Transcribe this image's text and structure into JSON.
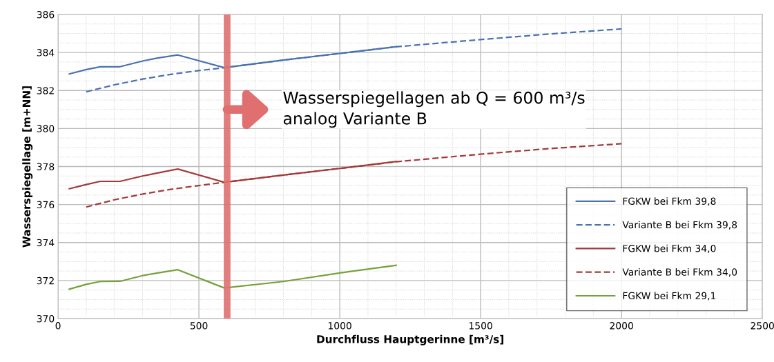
{
  "chart_data": {
    "type": "line",
    "xlabel": "Durchfluss Hauptgerinne [m³/s]",
    "ylabel": "Wasserspiegellage [m+NN]",
    "xlim": [
      0,
      2500
    ],
    "xticks": [
      0,
      500,
      1000,
      1500,
      2000,
      2500
    ],
    "ylim": [
      370,
      386
    ],
    "yticks": [
      370,
      372,
      374,
      376,
      378,
      380,
      382,
      384,
      386
    ],
    "grid": true,
    "legend": "bottom right",
    "annotations": [
      {
        "text": "Wasserspiegellagen ab Q = 600 m³/s\nanalog Variante B",
        "x": 600,
        "y": 381
      }
    ],
    "ref_lines": [
      {
        "axis": "x",
        "value": 600,
        "label": null,
        "color": "#e07070"
      }
    ],
    "series": [
      {
        "name": "FGKW bei Fkm 39,8",
        "color": "#4a72b0",
        "line_style": "solid",
        "x": [
          40,
          100,
          150,
          220,
          300,
          350,
          425,
          590,
          800,
          1000,
          1200
        ],
        "values": [
          382.87,
          383.1,
          383.25,
          383.25,
          383.55,
          383.7,
          383.87,
          383.2,
          383.6,
          383.95,
          384.3
        ]
      },
      {
        "name": "Variante B bei Fkm 39,8",
        "color": "#4a72b0",
        "line_style": "dashed",
        "x": [
          100,
          200,
          300,
          400,
          500,
          590,
          800,
          1000,
          1200,
          1500,
          1750,
          2000
        ],
        "values": [
          381.93,
          382.3,
          382.6,
          382.85,
          383.05,
          383.2,
          383.6,
          383.95,
          384.3,
          384.68,
          384.98,
          385.24
        ]
      },
      {
        "name": "FGKW bei Fkm 34,0",
        "color": "#a33a3a",
        "line_style": "solid",
        "x": [
          40,
          100,
          150,
          220,
          300,
          350,
          425,
          590,
          800,
          1000,
          1200
        ],
        "values": [
          376.83,
          377.05,
          377.22,
          377.22,
          377.5,
          377.65,
          377.87,
          377.17,
          377.55,
          377.9,
          378.26
        ]
      },
      {
        "name": "Variante B bei Fkm 34,0",
        "color": "#a33a3a",
        "line_style": "dashed",
        "x": [
          100,
          200,
          300,
          400,
          500,
          590,
          800,
          1000,
          1200,
          1500,
          1750,
          2000
        ],
        "values": [
          375.87,
          376.25,
          376.55,
          376.8,
          377.0,
          377.17,
          377.55,
          377.9,
          378.25,
          378.65,
          378.95,
          379.2
        ]
      },
      {
        "name": "FGKW bei Fkm 29,1",
        "color": "#77a03a",
        "line_style": "solid",
        "x": [
          40,
          100,
          150,
          220,
          300,
          350,
          425,
          540,
          590,
          800,
          1000,
          1200
        ],
        "values": [
          371.55,
          371.8,
          371.95,
          371.96,
          372.26,
          372.39,
          372.57,
          371.9,
          371.61,
          371.95,
          372.4,
          372.8
        ]
      }
    ]
  }
}
